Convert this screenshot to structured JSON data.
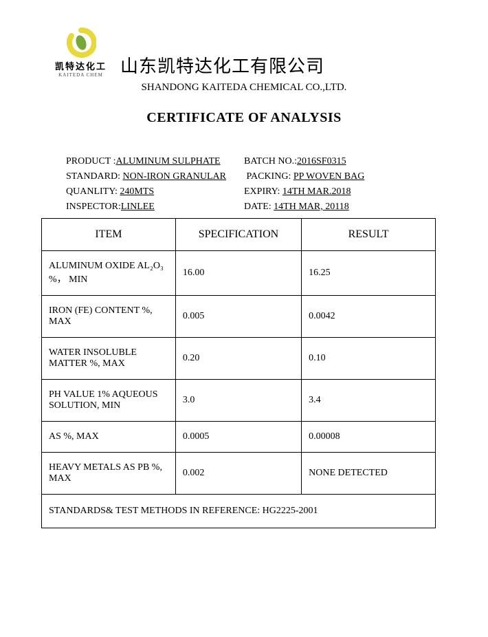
{
  "logo": {
    "cn": "凯特达化工",
    "en": "KAITEDA CHEM",
    "circle_color": "#e8d93a",
    "leaf_color": "#7aa838"
  },
  "company": {
    "cn": "山东凯特达化工有限公司",
    "en": "SHANDONG KAITEDA CHEMICAL CO.,LTD."
  },
  "title": "CERTIFICATE OF ANALYSIS",
  "info": {
    "product_label": "PRODUCT :",
    "product_value": "ALUMINUM SULPHATE  ",
    "batch_label": "BATCH NO.:",
    "batch_value": "2016SF0315         ",
    "standard_label": "STANDARD: ",
    "standard_value": "NON-IRON GRANULAR",
    "packing_label": " PACKING: ",
    "packing_value": " PP WOVEN BAG  ",
    "quantity_label": "QUANLITY: ",
    "quantity_value": "240MTS                    ",
    "expiry_label": "EXPIRY: ",
    "expiry_value": " 14TH MAR.2018",
    "inspector_label": "INSPECTOR:",
    "inspector_value": " LINLEE                ",
    "date_label": "DATE: ",
    "date_value": "14TH MAR, 20118        "
  },
  "table": {
    "headers": {
      "item": "ITEM",
      "spec": "SPECIFICATION",
      "result": "RESULT"
    },
    "rows": [
      {
        "item": "ALUMINUM OXIDE AL₂O₃ %，   MIN",
        "spec": "16.00",
        "result": "16.25"
      },
      {
        "item": "IRON (FE) CONTENT %,   MAX",
        "spec": "0.005",
        "result": "0.0042"
      },
      {
        "item": "WATER INSOLUBLE MATTER %,   MAX",
        "spec": "0.20",
        "result": "0.10"
      },
      {
        "item": "PH VALUE   1% AQUEOUS SOLUTION, MIN",
        "spec": "3.0",
        "result": "3.4"
      },
      {
        "item": "AS   %,   MAX",
        "spec": "0.0005",
        "result": "0.00008"
      },
      {
        "item": "HEAVY METALS AS PB %,   MAX",
        "spec": "0.002",
        "result": "NONE DETECTED"
      }
    ],
    "footer": "STANDARDS& TEST METHODS IN REFERENCE: HG2225-2001"
  }
}
